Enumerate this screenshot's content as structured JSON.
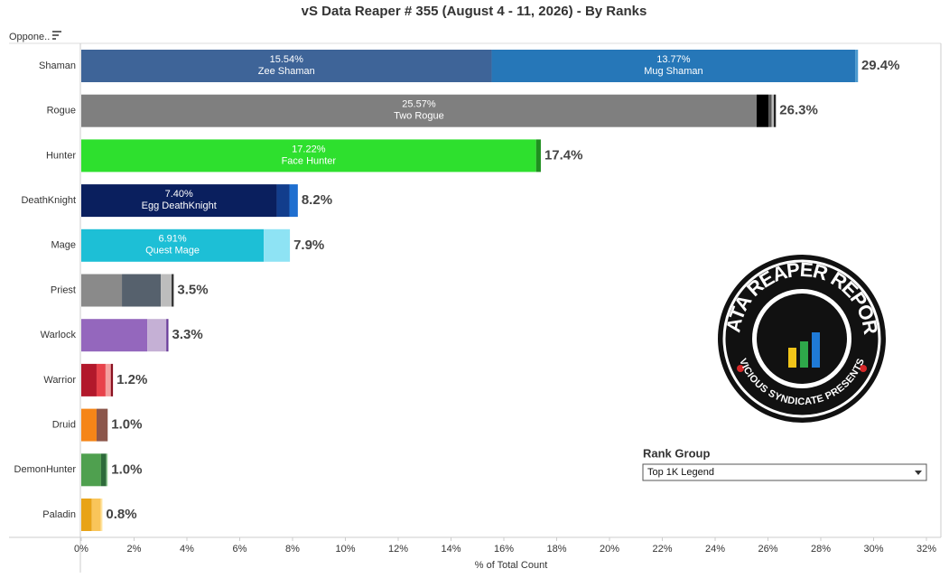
{
  "chart_data": {
    "type": "stacked-hbar",
    "title": "vS Data Reaper # 355 (August 4 - 11, 2026) - By Ranks",
    "row_header": "Oppone..",
    "x_label": "% of Total Count",
    "xlim": [
      0,
      32
    ],
    "xticks": [
      {
        "value": 0,
        "label": "0%"
      },
      {
        "value": 2,
        "label": "2%"
      },
      {
        "value": 4,
        "label": "4%"
      },
      {
        "value": 6,
        "label": "6%"
      },
      {
        "value": 8,
        "label": "8%"
      },
      {
        "value": 10,
        "label": "10%"
      },
      {
        "value": 12,
        "label": "12%"
      },
      {
        "value": 14,
        "label": "14%"
      },
      {
        "value": 16,
        "label": "16%"
      },
      {
        "value": 18,
        "label": "18%"
      },
      {
        "value": 20,
        "label": "20%"
      },
      {
        "value": 22,
        "label": "22%"
      },
      {
        "value": 24,
        "label": "24%"
      },
      {
        "value": 26,
        "label": "26%"
      },
      {
        "value": 28,
        "label": "28%"
      },
      {
        "value": 30,
        "label": "30%"
      },
      {
        "value": 32,
        "label": "32%"
      }
    ],
    "bars": [
      {
        "category": "Shaman",
        "total": 29.4,
        "total_label": "29.4%",
        "segments": [
          {
            "value": 15.54,
            "value_label": "15.54%",
            "name": "Zee Shaman",
            "color": "#3e6498"
          },
          {
            "value": 13.77,
            "value_label": "13.77%",
            "name": "Mug Shaman",
            "color": "#2677b8"
          },
          {
            "value": 0.1,
            "color": "#4a9ad0"
          }
        ]
      },
      {
        "category": "Rogue",
        "total": 26.3,
        "total_label": "26.3%",
        "segments": [
          {
            "value": 25.57,
            "value_label": "25.57%",
            "name": "Two Rogue",
            "color": "#7f7f7f"
          },
          {
            "value": 0.45,
            "color": "#000000"
          },
          {
            "value": 0.12,
            "color": "#555555"
          },
          {
            "value": 0.08,
            "color": "#bbbbbb"
          },
          {
            "value": 0.08,
            "color": "#222222"
          }
        ]
      },
      {
        "category": "Hunter",
        "total": 17.4,
        "total_label": "17.4%",
        "segments": [
          {
            "value": 17.22,
            "value_label": "17.22%",
            "name": "Face Hunter",
            "color": "#2ee02e"
          },
          {
            "value": 0.18,
            "color": "#1f8f1f"
          }
        ]
      },
      {
        "category": "DeathKnight",
        "total": 8.2,
        "total_label": "8.2%",
        "segments": [
          {
            "value": 7.4,
            "value_label": "7.40%",
            "name": "Egg DeathKnight",
            "color": "#0a1f5e"
          },
          {
            "value": 0.48,
            "color": "#123d8c"
          },
          {
            "value": 0.32,
            "color": "#1f6fd0"
          }
        ]
      },
      {
        "category": "Mage",
        "total": 7.9,
        "total_label": "7.9%",
        "segments": [
          {
            "value": 6.91,
            "value_label": "6.91%",
            "name": "Quest Mage",
            "color": "#1dbfd6"
          },
          {
            "value": 0.99,
            "color": "#8ee3f4"
          }
        ]
      },
      {
        "category": "Priest",
        "total": 3.5,
        "total_label": "3.5%",
        "segments": [
          {
            "value": 1.54,
            "color": "#8a8a8a"
          },
          {
            "value": 1.47,
            "color": "#56616d"
          },
          {
            "value": 0.41,
            "color": "#bdbdbd"
          },
          {
            "value": 0.08,
            "color": "#333333"
          }
        ]
      },
      {
        "category": "Warlock",
        "total": 3.3,
        "total_label": "3.3%",
        "segments": [
          {
            "value": 2.5,
            "color": "#9467bd"
          },
          {
            "value": 0.72,
            "color": "#c5b0d5"
          },
          {
            "value": 0.08,
            "color": "#6a3d9a"
          }
        ]
      },
      {
        "category": "Warrior",
        "total": 1.2,
        "total_label": "1.2%",
        "segments": [
          {
            "value": 0.58,
            "color": "#b2182b"
          },
          {
            "value": 0.34,
            "color": "#e8424b"
          },
          {
            "value": 0.2,
            "color": "#f4a0a0"
          },
          {
            "value": 0.08,
            "color": "#8a1020"
          }
        ]
      },
      {
        "category": "Druid",
        "total": 1.0,
        "total_label": "1.0%",
        "segments": [
          {
            "value": 0.58,
            "color": "#f58518"
          },
          {
            "value": 0.42,
            "color": "#8c564b"
          }
        ]
      },
      {
        "category": "DemonHunter",
        "total": 1.0,
        "total_label": "1.0%",
        "segments": [
          {
            "value": 0.75,
            "color": "#4fa04f"
          },
          {
            "value": 0.2,
            "color": "#2d6b3a"
          },
          {
            "value": 0.05,
            "color": "#9bd39b"
          }
        ]
      },
      {
        "category": "Paladin",
        "total": 0.8,
        "total_label": "0.8%",
        "segments": [
          {
            "value": 0.4,
            "color": "#e8a317"
          },
          {
            "value": 0.34,
            "color": "#f9c55a"
          },
          {
            "value": 0.06,
            "color": "#ffe4a0"
          }
        ]
      }
    ]
  },
  "filter": {
    "label": "Rank Group",
    "selected": "Top 1K Legend"
  },
  "logo": {
    "title": "DATA REAPER REPORT",
    "subtitle": "VICIOUS SYNDICATE PRESENTS"
  }
}
